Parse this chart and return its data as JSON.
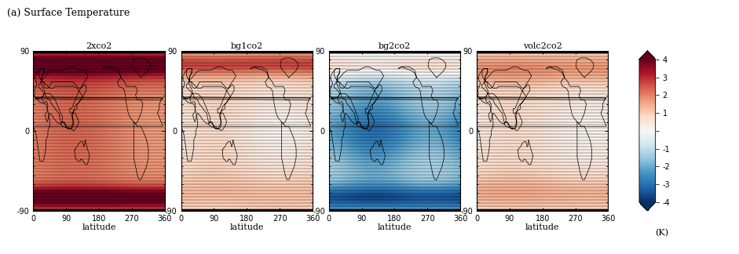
{
  "title": "(a) Surface Temperature",
  "panels": [
    "2xco2",
    "bg1co2",
    "bg2co2",
    "volc2co2"
  ],
  "colorbar_label": "(K)",
  "vmin": -4,
  "vmax": 4,
  "xlabel": "latitude",
  "xticks": [
    0,
    90,
    180,
    270,
    360
  ],
  "yticks": [
    90,
    0,
    -90
  ],
  "ytick_labels": [
    "90",
    "0",
    "-90"
  ],
  "xtick_labels": [
    "0",
    "90",
    "180",
    "270",
    "360"
  ],
  "colorbar_tick_vals": [
    4,
    3,
    2,
    1,
    -1,
    -2,
    -3,
    -4
  ],
  "colorbar_tick_labels": [
    "4",
    "3",
    "2",
    "1",
    "-1",
    "-2",
    "-3",
    "-4"
  ]
}
